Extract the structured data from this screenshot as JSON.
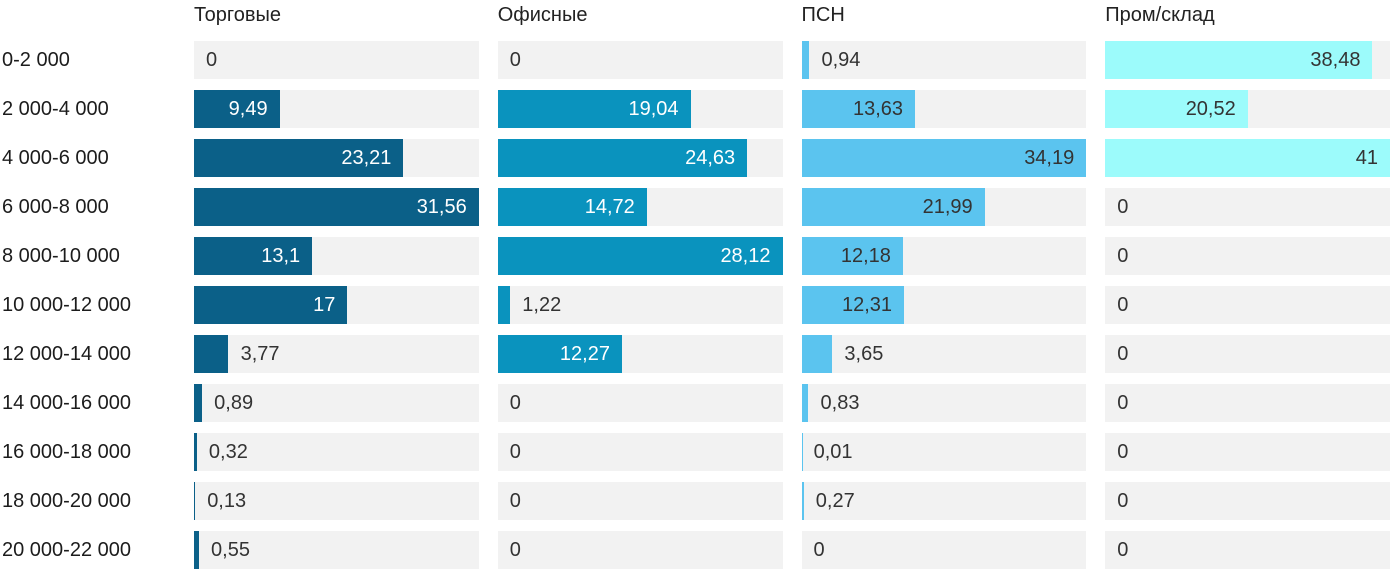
{
  "chart_data": {
    "type": "bar",
    "orientation": "horizontal",
    "grid": false,
    "legend_position": "none",
    "scaling": "each column scaled independently to its own max value",
    "track_color": "#f2f2f2",
    "outside_label_color": "#333333",
    "row_label_color": "#1c1c1c",
    "header_color": "#222222",
    "categories": [
      "0-2 000",
      "2 000-4 000",
      "4 000-6 000",
      "6 000-8 000",
      "8 000-10 000",
      "10 000-12 000",
      "12 000-14 000",
      "14 000-16 000",
      "16 000-18 000",
      "18 000-20 000",
      "20 000-22 000"
    ],
    "series": [
      {
        "name": "Торговые",
        "color": "#0b6088",
        "inside_label_color": "#ffffff",
        "max": 31.56,
        "values": [
          0,
          9.49,
          23.21,
          31.56,
          13.1,
          17,
          3.77,
          0.89,
          0.32,
          0.13,
          0.55
        ],
        "labels": [
          "0",
          "9,49",
          "23,21",
          "31,56",
          "13,1",
          "17",
          "3,77",
          "0,89",
          "0,32",
          "0,13",
          "0,55"
        ]
      },
      {
        "name": "Офисные",
        "color": "#0a93be",
        "inside_label_color": "#ffffff",
        "max": 28.12,
        "values": [
          0,
          19.04,
          24.63,
          14.72,
          28.12,
          1.22,
          12.27,
          0,
          0,
          0,
          0
        ],
        "labels": [
          "0",
          "19,04",
          "24,63",
          "14,72",
          "28,12",
          "1,22",
          "12,27",
          "0",
          "0",
          "0",
          "0"
        ]
      },
      {
        "name": "ПСН",
        "color": "#5bc4ef",
        "inside_label_color": "#333333",
        "max": 34.19,
        "values": [
          0.94,
          13.63,
          34.19,
          21.99,
          12.18,
          12.31,
          3.65,
          0.83,
          0.01,
          0.27,
          0
        ],
        "labels": [
          "0,94",
          "13,63",
          "34,19",
          "21,99",
          "12,18",
          "12,31",
          "3,65",
          "0,83",
          "0,01",
          "0,27",
          "0"
        ]
      },
      {
        "name": "Пром/склад",
        "color": "#9cfbfb",
        "inside_label_color": "#333333",
        "max": 41,
        "values": [
          38.48,
          20.52,
          41,
          0,
          0,
          0,
          0,
          0,
          0,
          0,
          0
        ],
        "labels": [
          "38,48",
          "20,52",
          "41",
          "0",
          "0",
          "0",
          "0",
          "0",
          "0",
          "0",
          "0"
        ]
      }
    ]
  }
}
